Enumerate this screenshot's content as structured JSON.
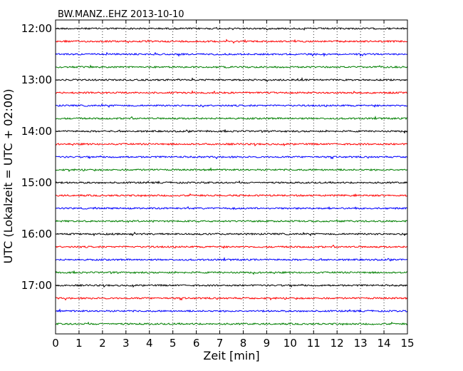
{
  "chart_data": {
    "type": "line",
    "title": "BW.MANZ..EHZ 2013-10-10",
    "xlabel": "Zeit  [min]",
    "ylabel": "UTC (Lokalzeit = UTC + 02:00)",
    "xlim": [
      0,
      15
    ],
    "x_ticks": [
      "0",
      "1",
      "2",
      "3",
      "4",
      "5",
      "6",
      "7",
      "8",
      "9",
      "10",
      "11",
      "12",
      "13",
      "14",
      "15"
    ],
    "y_ticks": [
      "12:00",
      "13:00",
      "14:00",
      "15:00",
      "16:00",
      "17:00"
    ],
    "grid": "vertical dotted",
    "trace_interval_min": 15,
    "start_time": "12:00",
    "trace_colors": [
      "#000000",
      "#ff0000",
      "#0000ff",
      "#007f00"
    ],
    "trace_count": 24
  }
}
